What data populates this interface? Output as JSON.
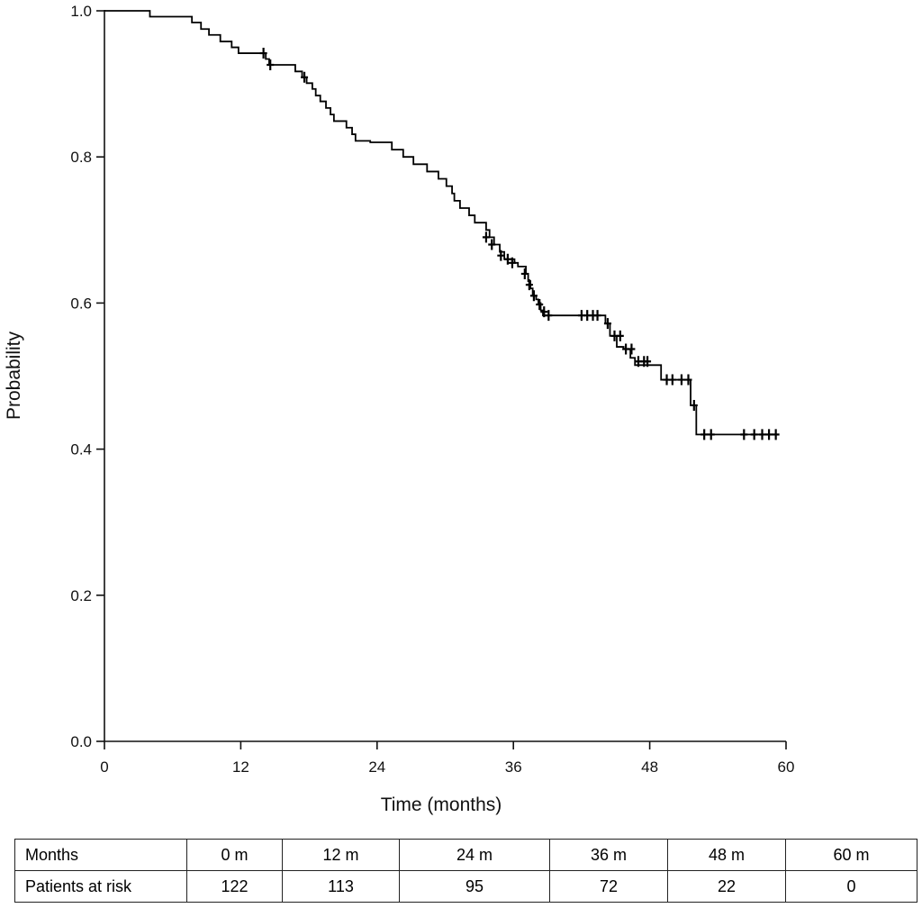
{
  "chart_data": {
    "type": "line",
    "subtype": "kaplan-meier-survival-curve",
    "xlabel": "Time (months)",
    "ylabel": "Probability",
    "xlim": [
      0,
      60
    ],
    "ylim": [
      0,
      1.0
    ],
    "xticks": [
      0,
      12,
      24,
      36,
      48,
      60
    ],
    "yticks": [
      0.0,
      0.2,
      0.4,
      0.6,
      0.8,
      1.0
    ],
    "xtick_labels": [
      "0",
      "12",
      "24",
      "36",
      "48",
      "60"
    ],
    "ytick_labels": [
      "0.0",
      "0.2",
      "0.4",
      "0.6",
      "0.8",
      "1.0"
    ],
    "grid": false,
    "legend": "none",
    "series": [
      {
        "color": "#000000",
        "steps": [
          [
            0,
            1.0
          ],
          [
            4.0,
            0.992
          ],
          [
            7.7,
            0.984
          ],
          [
            8.5,
            0.975
          ],
          [
            9.2,
            0.967
          ],
          [
            10.2,
            0.958
          ],
          [
            11.2,
            0.95
          ],
          [
            11.8,
            0.942
          ],
          [
            14.2,
            0.934
          ],
          [
            14.5,
            0.926
          ],
          [
            16.8,
            0.917
          ],
          [
            17.4,
            0.909
          ],
          [
            17.8,
            0.901
          ],
          [
            18.3,
            0.893
          ],
          [
            18.6,
            0.884
          ],
          [
            19.0,
            0.876
          ],
          [
            19.5,
            0.867
          ],
          [
            19.9,
            0.858
          ],
          [
            20.2,
            0.849
          ],
          [
            21.3,
            0.84
          ],
          [
            21.8,
            0.831
          ],
          [
            22.1,
            0.822
          ],
          [
            23.4,
            0.82
          ],
          [
            25.3,
            0.81
          ],
          [
            26.3,
            0.8
          ],
          [
            27.2,
            0.79
          ],
          [
            28.4,
            0.78
          ],
          [
            29.4,
            0.77
          ],
          [
            30.1,
            0.76
          ],
          [
            30.6,
            0.75
          ],
          [
            30.8,
            0.74
          ],
          [
            31.3,
            0.73
          ],
          [
            32.1,
            0.72
          ],
          [
            32.6,
            0.71
          ],
          [
            33.6,
            0.7
          ],
          [
            33.9,
            0.69
          ],
          [
            34.3,
            0.68
          ],
          [
            34.8,
            0.67
          ],
          [
            35.2,
            0.66
          ],
          [
            36.1,
            0.655
          ],
          [
            36.4,
            0.65
          ],
          [
            37.1,
            0.64
          ],
          [
            37.3,
            0.63
          ],
          [
            37.5,
            0.62
          ],
          [
            37.7,
            0.61
          ],
          [
            38.0,
            0.605
          ],
          [
            38.2,
            0.6
          ],
          [
            38.4,
            0.59
          ],
          [
            38.6,
            0.583
          ],
          [
            44.1,
            0.572
          ],
          [
            44.5,
            0.555
          ],
          [
            45.1,
            0.54
          ],
          [
            45.7,
            0.537
          ],
          [
            46.3,
            0.525
          ],
          [
            46.7,
            0.515
          ],
          [
            49.0,
            0.495
          ],
          [
            51.6,
            0.46
          ],
          [
            52.1,
            0.42
          ],
          [
            59.2,
            0.42
          ]
        ],
        "censored": [
          [
            14.0,
            0.942
          ],
          [
            14.6,
            0.926
          ],
          [
            17.6,
            0.909
          ],
          [
            33.6,
            0.69
          ],
          [
            34.1,
            0.68
          ],
          [
            34.9,
            0.665
          ],
          [
            35.5,
            0.66
          ],
          [
            35.9,
            0.655
          ],
          [
            37.0,
            0.64
          ],
          [
            37.4,
            0.625
          ],
          [
            37.8,
            0.61
          ],
          [
            38.3,
            0.598
          ],
          [
            38.7,
            0.588
          ],
          [
            39.1,
            0.583
          ],
          [
            42.0,
            0.583
          ],
          [
            42.5,
            0.583
          ],
          [
            43.0,
            0.583
          ],
          [
            43.4,
            0.583
          ],
          [
            44.3,
            0.572
          ],
          [
            44.9,
            0.555
          ],
          [
            45.4,
            0.555
          ],
          [
            45.9,
            0.537
          ],
          [
            46.4,
            0.537
          ],
          [
            47.0,
            0.52
          ],
          [
            47.5,
            0.52
          ],
          [
            47.8,
            0.52
          ],
          [
            49.5,
            0.495
          ],
          [
            50.0,
            0.495
          ],
          [
            50.8,
            0.495
          ],
          [
            51.4,
            0.495
          ],
          [
            51.9,
            0.46
          ],
          [
            52.8,
            0.42
          ],
          [
            53.4,
            0.42
          ],
          [
            56.3,
            0.42
          ],
          [
            57.2,
            0.42
          ],
          [
            57.9,
            0.42
          ],
          [
            58.5,
            0.42
          ],
          [
            59.1,
            0.42
          ]
        ]
      }
    ]
  },
  "risk_table": {
    "header_label": "Months",
    "row_label": "Patients at risk",
    "time_points": [
      "0 m",
      "12 m",
      "24 m",
      "36 m",
      "48 m",
      "60 m"
    ],
    "counts": [
      "122",
      "113",
      "95",
      "72",
      "22",
      "0"
    ]
  }
}
